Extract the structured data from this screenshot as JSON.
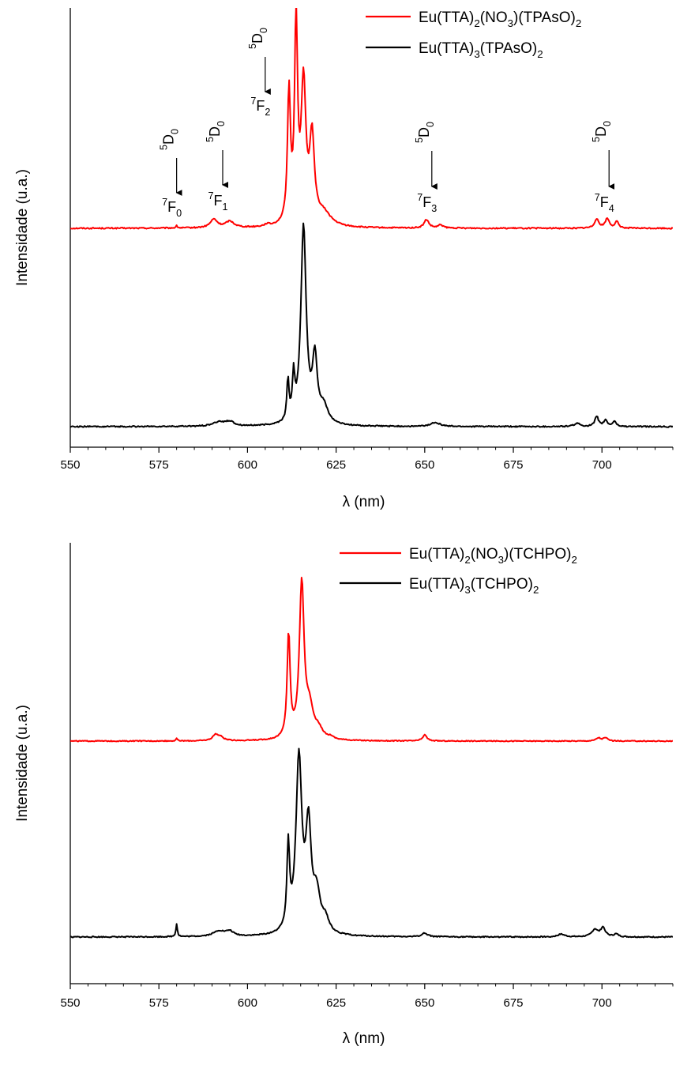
{
  "chart_data": [
    {
      "type": "line",
      "title": "",
      "xlabel": "λ (nm)",
      "ylabel": "Intensidade (u.a.)",
      "xlim": [
        550,
        720
      ],
      "x_ticks": [
        550,
        575,
        600,
        625,
        650,
        675,
        700
      ],
      "x_tick_labels": [
        "550",
        "575",
        "600",
        "625",
        "650",
        "675",
        "700"
      ],
      "y_scale": "arbitrary units, no tick labels",
      "legend_position": "top-right",
      "series": [
        {
          "name": "Eu(TTA)2(NO3)(TPAsO)2",
          "label_parts": [
            {
              "t": "Eu(TTA)"
            },
            {
              "t": "2",
              "sub": true
            },
            {
              "t": "(NO"
            },
            {
              "t": "3",
              "sub": true
            },
            {
              "t": ")(TPAsO)"
            },
            {
              "t": "2",
              "sub": true
            }
          ],
          "color": "#ff0000",
          "baseline": 1.0,
          "peaks": [
            {
              "x": 580.0,
              "h": 0.01,
              "w": 0.3
            },
            {
              "x": 590.5,
              "h": 0.04,
              "w": 1.2
            },
            {
              "x": 595.0,
              "h": 0.03,
              "w": 1.5
            },
            {
              "x": 605.5,
              "h": 0.01,
              "w": 0.8
            },
            {
              "x": 611.7,
              "h": 0.62,
              "w": 0.5
            },
            {
              "x": 613.7,
              "h": 0.95,
              "w": 0.5
            },
            {
              "x": 615.8,
              "h": 0.66,
              "w": 0.8
            },
            {
              "x": 618.2,
              "h": 0.4,
              "w": 0.8
            },
            {
              "x": 621.5,
              "h": 0.06,
              "w": 2.5
            },
            {
              "x": 650.5,
              "h": 0.04,
              "w": 0.8
            },
            {
              "x": 654.5,
              "h": 0.015,
              "w": 0.8
            },
            {
              "x": 698.5,
              "h": 0.045,
              "w": 0.7
            },
            {
              "x": 701.5,
              "h": 0.045,
              "w": 0.7
            },
            {
              "x": 704.2,
              "h": 0.03,
              "w": 0.6
            }
          ]
        },
        {
          "name": "Eu(TTA)3(TPAsO)2",
          "label_parts": [
            {
              "t": "Eu(TTA)"
            },
            {
              "t": "3",
              "sub": true
            },
            {
              "t": "(TPAsO)"
            },
            {
              "t": "2",
              "sub": true
            }
          ],
          "color": "#000000",
          "baseline": 0.0,
          "peaks": [
            {
              "x": 592.0,
              "h": 0.02,
              "w": 2.0
            },
            {
              "x": 595.0,
              "h": 0.02,
              "w": 1.5
            },
            {
              "x": 611.4,
              "h": 0.2,
              "w": 0.35
            },
            {
              "x": 613.0,
              "h": 0.2,
              "w": 0.4
            },
            {
              "x": 615.8,
              "h": 0.95,
              "w": 0.9
            },
            {
              "x": 619.0,
              "h": 0.3,
              "w": 0.8
            },
            {
              "x": 621.5,
              "h": 0.08,
              "w": 1.5
            },
            {
              "x": 653.0,
              "h": 0.02,
              "w": 1.5
            },
            {
              "x": 693.0,
              "h": 0.015,
              "w": 1.0
            },
            {
              "x": 698.5,
              "h": 0.05,
              "w": 0.6
            },
            {
              "x": 701.0,
              "h": 0.03,
              "w": 0.6
            },
            {
              "x": 703.5,
              "h": 0.025,
              "w": 0.6
            }
          ]
        }
      ],
      "annotations": [
        {
          "x": 580,
          "lower": "7F0",
          "upper": "5D0",
          "lower_parts": [
            {
              "t": "7",
              "sup": true
            },
            {
              "t": "F"
            },
            {
              "t": "0",
              "sub": true
            }
          ],
          "upper_parts": [
            {
              "t": "5",
              "sup": true
            },
            {
              "t": "D"
            },
            {
              "t": "0",
              "sub": true
            }
          ]
        },
        {
          "x": 593,
          "lower": "7F1",
          "upper": "5D0",
          "lower_parts": [
            {
              "t": "7",
              "sup": true
            },
            {
              "t": "F"
            },
            {
              "t": "1",
              "sub": true
            }
          ],
          "upper_parts": [
            {
              "t": "5",
              "sup": true
            },
            {
              "t": "D"
            },
            {
              "t": "0",
              "sub": true
            }
          ]
        },
        {
          "x": 605,
          "lower": "7F2",
          "upper": "5D0",
          "lower_parts": [
            {
              "t": "7",
              "sup": true
            },
            {
              "t": "F"
            },
            {
              "t": "2",
              "sub": true
            }
          ],
          "upper_parts": [
            {
              "t": "5",
              "sup": true
            },
            {
              "t": "D"
            },
            {
              "t": "0",
              "sub": true
            }
          ]
        },
        {
          "x": 652,
          "lower": "7F3",
          "upper": "5D0",
          "lower_parts": [
            {
              "t": "7",
              "sup": true
            },
            {
              "t": "F"
            },
            {
              "t": "3",
              "sub": true
            }
          ],
          "upper_parts": [
            {
              "t": "5",
              "sup": true
            },
            {
              "t": "D"
            },
            {
              "t": "0",
              "sub": true
            }
          ]
        },
        {
          "x": 702,
          "lower": "7F4",
          "upper": "5D0",
          "lower_parts": [
            {
              "t": "7",
              "sup": true
            },
            {
              "t": "F"
            },
            {
              "t": "4",
              "sub": true
            }
          ],
          "upper_parts": [
            {
              "t": "5",
              "sup": true
            },
            {
              "t": "D"
            },
            {
              "t": "0",
              "sub": true
            }
          ]
        }
      ]
    },
    {
      "type": "line",
      "title": "",
      "xlabel": "λ (nm)",
      "ylabel": "Intensidade (u.a.)",
      "xlim": [
        550,
        720
      ],
      "x_ticks": [
        550,
        575,
        600,
        625,
        650,
        675,
        700
      ],
      "x_tick_labels": [
        "550",
        "575",
        "600",
        "625",
        "650",
        "675",
        "700"
      ],
      "y_scale": "arbitrary units, no tick labels",
      "legend_position": "top-right",
      "series": [
        {
          "name": "Eu(TTA)2(NO3)(TCHPO)2",
          "label_parts": [
            {
              "t": "Eu(TTA)"
            },
            {
              "t": "2",
              "sub": true
            },
            {
              "t": "(NO"
            },
            {
              "t": "3",
              "sub": true
            },
            {
              "t": ")(TCHPO)"
            },
            {
              "t": "2",
              "sub": true
            }
          ],
          "color": "#ff0000",
          "baseline": 1.0,
          "peaks": [
            {
              "x": 580.0,
              "h": 0.015,
              "w": 0.3
            },
            {
              "x": 591.0,
              "h": 0.04,
              "w": 1.0
            },
            {
              "x": 592.5,
              "h": 0.02,
              "w": 1.0
            },
            {
              "x": 611.6,
              "h": 0.68,
              "w": 0.5
            },
            {
              "x": 615.3,
              "h": 1.02,
              "w": 0.8
            },
            {
              "x": 617.5,
              "h": 0.18,
              "w": 1.2
            },
            {
              "x": 620.0,
              "h": 0.06,
              "w": 1.5
            },
            {
              "x": 623.5,
              "h": 0.015,
              "w": 0.8
            },
            {
              "x": 650.0,
              "h": 0.04,
              "w": 0.7
            },
            {
              "x": 699.0,
              "h": 0.02,
              "w": 0.8
            },
            {
              "x": 701.0,
              "h": 0.02,
              "w": 0.8
            }
          ]
        },
        {
          "name": "Eu(TTA)3(TCHPO)2",
          "label_parts": [
            {
              "t": "Eu(TTA)"
            },
            {
              "t": "3",
              "sub": true
            },
            {
              "t": "(TCHPO)"
            },
            {
              "t": "2",
              "sub": true
            }
          ],
          "color": "#000000",
          "baseline": 0.0,
          "peaks": [
            {
              "x": 580.0,
              "h": 0.07,
              "w": 0.25
            },
            {
              "x": 592.0,
              "h": 0.03,
              "w": 2.0
            },
            {
              "x": 595.0,
              "h": 0.025,
              "w": 1.2
            },
            {
              "x": 611.5,
              "h": 0.45,
              "w": 0.45
            },
            {
              "x": 614.5,
              "h": 0.95,
              "w": 1.0
            },
            {
              "x": 617.2,
              "h": 0.55,
              "w": 0.9
            },
            {
              "x": 619.5,
              "h": 0.2,
              "w": 1.2
            },
            {
              "x": 622.0,
              "h": 0.07,
              "w": 1.2
            },
            {
              "x": 650.0,
              "h": 0.02,
              "w": 1.0
            },
            {
              "x": 688.5,
              "h": 0.015,
              "w": 1.2
            },
            {
              "x": 698.0,
              "h": 0.04,
              "w": 1.0
            },
            {
              "x": 700.3,
              "h": 0.05,
              "w": 0.8
            },
            {
              "x": 704.0,
              "h": 0.015,
              "w": 0.8
            }
          ]
        }
      ],
      "annotations": []
    }
  ]
}
